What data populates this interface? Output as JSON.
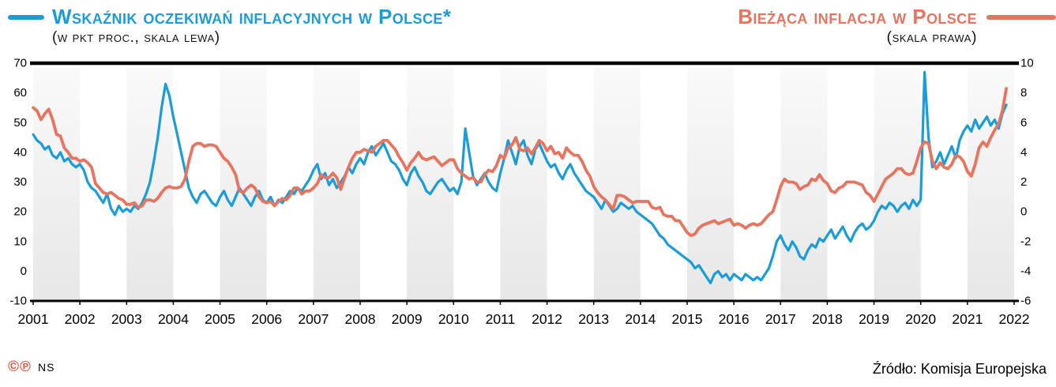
{
  "header": {
    "left": {
      "title": "Wskaźnik oczekiwań inflacyjnych w Polsce*",
      "subtitle": "(w pkt proc., skala lewa)"
    },
    "right": {
      "title": "Bieżąca inflacja w Polsce",
      "subtitle": "(skala prawa)"
    }
  },
  "footer": {
    "copyright_marks": "©℗",
    "credit": "NS",
    "source": "Źródło: Komisja Europejska"
  },
  "colors": {
    "blue": "#1a9cd8",
    "orange": "#e8735f",
    "axis_line": "#000000",
    "band_top": "#fafafa",
    "band_bottom": "#e7e7e7",
    "copyright": "#e8503a"
  },
  "chart_data": {
    "type": "line",
    "title_left": "Wskaźnik oczekiwań inflacyjnych w Polsce (w pkt proc., skala lewa)",
    "title_right": "Bieżąca inflacja w Polsce (skala prawa)",
    "x_start": 2001.0,
    "x_step_months": 1,
    "x_axis": {
      "min": 2001,
      "max": 2022,
      "tick_labels": [
        "2001",
        "2002",
        "2003",
        "2004",
        "2005",
        "2006",
        "2007",
        "2008",
        "2009",
        "2010",
        "2011",
        "2012",
        "2013",
        "2014",
        "2015",
        "2016",
        "2017",
        "2018",
        "2019",
        "2020",
        "2021",
        "2022"
      ]
    },
    "left_axis": {
      "min": -10,
      "max": 70,
      "ticks": [
        70,
        60,
        50,
        40,
        30,
        20,
        10,
        0,
        -10
      ]
    },
    "right_axis": {
      "min": -6,
      "max": 10,
      "ticks": [
        10,
        8,
        6,
        4,
        2,
        0,
        -2,
        -4,
        -6
      ]
    },
    "grid": false,
    "legend_position": "title-inline",
    "series": [
      {
        "name": "Wskaźnik oczekiwań inflacyjnych w Polsce",
        "axis": "left",
        "color": "#1a9cd8",
        "values": [
          46,
          44,
          43,
          41,
          42,
          39,
          38,
          40,
          37,
          38,
          36,
          35,
          36,
          34,
          30,
          28,
          27,
          25,
          23,
          26,
          21,
          19,
          22,
          20,
          21,
          20,
          22,
          21,
          23,
          26,
          30,
          37,
          45,
          55,
          63,
          59,
          52,
          46,
          40,
          34,
          28,
          25,
          23,
          26,
          27,
          25,
          23,
          22,
          25,
          27,
          24,
          22,
          25,
          28,
          26,
          24,
          22,
          25,
          27,
          24,
          23,
          25,
          22,
          24,
          23,
          25,
          27,
          26,
          28,
          27,
          29,
          31,
          34,
          36,
          31,
          33,
          29,
          31,
          28,
          30,
          32,
          35,
          33,
          36,
          38,
          36,
          40,
          42,
          39,
          41,
          43,
          40,
          37,
          36,
          34,
          31,
          29,
          33,
          35,
          32,
          30,
          27,
          26,
          28,
          30,
          31,
          29,
          27,
          28,
          26,
          30,
          48,
          40,
          32,
          29,
          31,
          33,
          30,
          28,
          27,
          33,
          38,
          44,
          40,
          36,
          42,
          44,
          39,
          36,
          41,
          43,
          40,
          37,
          35,
          36,
          33,
          31,
          34,
          36,
          33,
          31,
          29,
          27,
          26,
          25,
          23,
          21,
          24,
          22,
          20,
          21,
          23,
          22,
          21,
          22,
          20,
          19,
          18,
          17,
          16,
          14,
          12,
          11,
          9,
          8,
          7,
          6,
          5,
          4,
          3,
          1,
          2,
          0,
          -2,
          -4,
          -1,
          0,
          -2,
          -1,
          -3,
          -1,
          -2,
          -3,
          -1,
          -2,
          -3,
          -2,
          -3,
          -1,
          1,
          5,
          10,
          12,
          9,
          7,
          10,
          8,
          5,
          4,
          7,
          9,
          8,
          11,
          10,
          12,
          14,
          11,
          13,
          15,
          12,
          10,
          13,
          15,
          16,
          14,
          15,
          17,
          20,
          22,
          21,
          23,
          22,
          20,
          22,
          23,
          21,
          24,
          22,
          24,
          67,
          45,
          35,
          37,
          40,
          36,
          39,
          42,
          38,
          44,
          47,
          49,
          47,
          51,
          48,
          50,
          52,
          49,
          51,
          48,
          53,
          56
        ]
      },
      {
        "name": "Bieżąca inflacja w Polsce",
        "axis": "right",
        "color": "#e8735f",
        "values": [
          7.0,
          6.8,
          6.2,
          6.6,
          6.9,
          6.2,
          5.2,
          5.1,
          4.3,
          4.0,
          3.6,
          3.6,
          3.4,
          3.5,
          3.3,
          3.0,
          1.9,
          1.6,
          1.3,
          1.2,
          1.3,
          1.1,
          0.9,
          0.8,
          0.5,
          0.5,
          0.6,
          0.3,
          0.4,
          0.8,
          0.8,
          0.7,
          0.9,
          1.3,
          1.6,
          1.7,
          1.6,
          1.6,
          1.7,
          2.2,
          3.4,
          4.4,
          4.6,
          4.6,
          4.4,
          4.5,
          4.5,
          4.4,
          4.0,
          3.6,
          3.4,
          3.0,
          2.5,
          1.4,
          1.3,
          1.6,
          1.8,
          1.6,
          1.0,
          0.7,
          0.6,
          0.7,
          0.4,
          0.7,
          0.9,
          0.8,
          1.1,
          1.6,
          1.6,
          1.2,
          1.4,
          1.4,
          1.6,
          1.9,
          2.5,
          2.3,
          2.3,
          2.6,
          2.3,
          1.5,
          2.3,
          3.0,
          3.6,
          4.0,
          4.0,
          4.2,
          4.1,
          4.0,
          4.4,
          4.6,
          4.8,
          4.8,
          4.5,
          4.2,
          3.7,
          3.3,
          2.8,
          3.3,
          3.6,
          4.0,
          3.6,
          3.5,
          3.6,
          3.7,
          3.4,
          3.1,
          3.3,
          3.5,
          3.5,
          2.9,
          2.6,
          2.4,
          2.2,
          2.3,
          2.0,
          2.0,
          2.5,
          2.8,
          2.7,
          3.1,
          3.8,
          3.6,
          4.3,
          4.5,
          5.0,
          4.2,
          4.1,
          4.3,
          3.9,
          4.3,
          4.8,
          4.6,
          4.1,
          4.4,
          3.9,
          4.0,
          3.6,
          4.3,
          4.0,
          3.8,
          3.8,
          3.4,
          2.8,
          2.4,
          1.7,
          1.3,
          1.0,
          0.8,
          0.5,
          0.2,
          1.1,
          1.1,
          1.0,
          0.8,
          0.6,
          0.7,
          0.7,
          0.7,
          0.7,
          0.3,
          0.2,
          0.3,
          -0.2,
          -0.3,
          -0.3,
          -0.6,
          -0.6,
          -1.0,
          -1.4,
          -1.6,
          -1.5,
          -1.1,
          -0.9,
          -0.8,
          -0.7,
          -0.6,
          -0.8,
          -0.7,
          -0.6,
          -0.5,
          -0.9,
          -0.8,
          -0.9,
          -1.1,
          -0.9,
          -0.8,
          -0.9,
          -0.8,
          -0.5,
          -0.2,
          0.0,
          0.8,
          1.7,
          2.2,
          2.0,
          2.0,
          1.9,
          1.5,
          1.7,
          1.8,
          2.2,
          2.1,
          2.5,
          2.1,
          1.9,
          1.4,
          1.3,
          1.6,
          1.7,
          2.0,
          2.0,
          2.0,
          1.9,
          1.8,
          1.3,
          1.1,
          0.7,
          1.2,
          1.7,
          2.2,
          2.4,
          2.6,
          2.9,
          2.9,
          2.6,
          2.5,
          2.6,
          3.4,
          4.3,
          4.7,
          4.6,
          3.4,
          2.9,
          3.3,
          3.0,
          2.9,
          3.2,
          3.8,
          3.7,
          3.4,
          2.7,
          2.4,
          3.2,
          4.3,
          4.7,
          4.4,
          5.0,
          5.5,
          5.9,
          6.8,
          8.3
        ]
      }
    ]
  }
}
